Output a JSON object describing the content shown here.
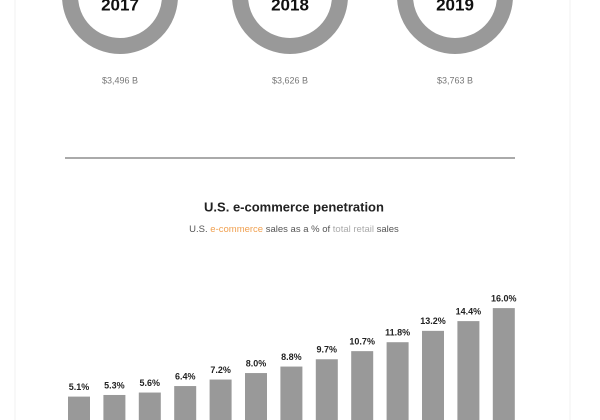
{
  "donuts": [
    {
      "year": "2017",
      "total": "$3,496 B"
    },
    {
      "year": "2018",
      "total": "$3,626 B"
    },
    {
      "year": "2019",
      "total": "$3,763 B"
    }
  ],
  "chart_data": {
    "type": "bar",
    "title": "U.S. e-commerce penetration",
    "subtitle": [
      {
        "text": "U.S. ",
        "color": "#555555"
      },
      {
        "text": "e-commerce",
        "color": "#f0a050"
      },
      {
        "text": " sales as a % of ",
        "color": "#555555"
      },
      {
        "text": "total retail",
        "color": "#aaaaaa"
      },
      {
        "text": " sales",
        "color": "#555555"
      }
    ],
    "categories": [
      null,
      null,
      null,
      null,
      null,
      null,
      null,
      null,
      null,
      null,
      null,
      null,
      null
    ],
    "values": [
      5.1,
      5.3,
      5.6,
      6.4,
      7.2,
      8.0,
      8.8,
      9.7,
      10.7,
      11.8,
      13.2,
      14.4,
      16.0
    ],
    "value_labels": [
      "5.1%",
      "5.3%",
      "5.6%",
      "6.4%",
      "7.2%",
      "8.0%",
      "8.8%",
      "9.7%",
      "10.7%",
      "11.8%",
      "13.2%",
      "14.4%",
      "16.0%"
    ],
    "color": "#999999",
    "ylim": [
      0,
      17
    ]
  }
}
